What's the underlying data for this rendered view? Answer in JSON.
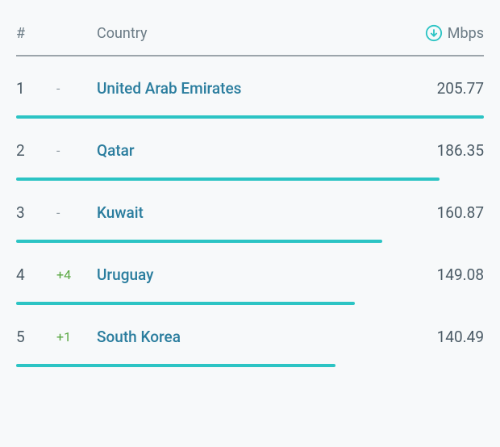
{
  "header": {
    "rank_label": "#",
    "country_label": "Country",
    "mbps_label": "Mbps"
  },
  "colors": {
    "bar": "#2cc4c4",
    "header_border": "#9ca5ab",
    "text_muted": "#6b7b85",
    "text_value": "#4a5a65",
    "link": "#2a7d9e",
    "change_none": "#8a969e",
    "change_pos": "#5aa843",
    "icon": "#2cc4c4",
    "background": "#f7f9fa"
  },
  "rows": [
    {
      "rank": "1",
      "change": "-",
      "change_type": "none",
      "country": "United Arab Emirates",
      "mbps": "205.77",
      "bar_pct": 100
    },
    {
      "rank": "2",
      "change": "-",
      "change_type": "none",
      "country": "Qatar",
      "mbps": "186.35",
      "bar_pct": 90.5
    },
    {
      "rank": "3",
      "change": "-",
      "change_type": "none",
      "country": "Kuwait",
      "mbps": "160.87",
      "bar_pct": 78.2
    },
    {
      "rank": "4",
      "change": "+4",
      "change_type": "pos",
      "country": "Uruguay",
      "mbps": "149.08",
      "bar_pct": 72.4
    },
    {
      "rank": "5",
      "change": "+1",
      "change_type": "pos",
      "country": "South Korea",
      "mbps": "140.49",
      "bar_pct": 68.3
    }
  ]
}
